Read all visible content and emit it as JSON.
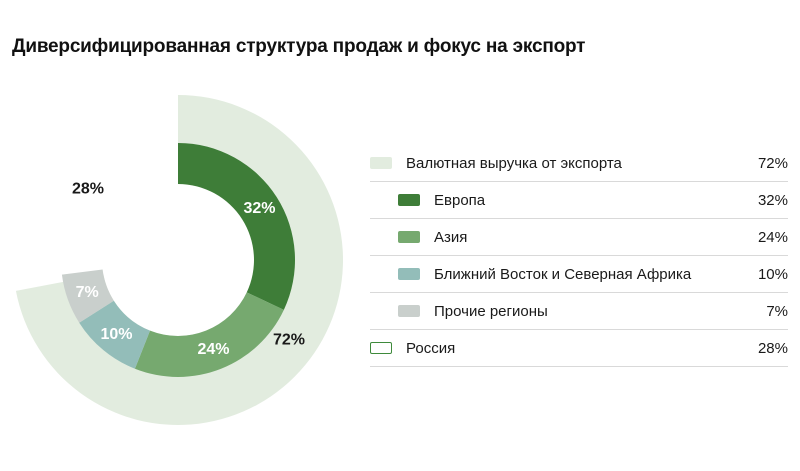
{
  "title": "Диверсифицированная структура продаж и фокус на экспорт",
  "colors": {
    "export": "#e2ecdf",
    "europe": "#3e7d38",
    "asia": "#76a96f",
    "mena": "#93bdb9",
    "other": "#c9cfcc",
    "russia_outline": "#3e8a3b"
  },
  "chart_data": [
    {
      "type": "pie",
      "ring": "outer",
      "series": [
        {
          "name": "Валютная выручка от экспорта",
          "value": 72,
          "label": "72%"
        },
        {
          "name": "Россия",
          "value": 28,
          "label": "28%"
        }
      ]
    },
    {
      "type": "pie",
      "ring": "inner",
      "series": [
        {
          "name": "Европа",
          "value": 32,
          "label": "32%"
        },
        {
          "name": "Азия",
          "value": 24,
          "label": "24%"
        },
        {
          "name": "Ближний Восток и Северная Африка",
          "value": 10,
          "label": "10%"
        },
        {
          "name": "Прочие регионы",
          "value": 7,
          "label": "7%"
        }
      ]
    }
  ],
  "legend": [
    {
      "label": "Валютная выручка от экспорта",
      "value": "72%",
      "swatch": "export",
      "sub": false
    },
    {
      "label": "Европа",
      "value": "32%",
      "swatch": "europe",
      "sub": true
    },
    {
      "label": "Азия",
      "value": "24%",
      "swatch": "asia",
      "sub": true
    },
    {
      "label": "Ближний Восток и Северная Африка",
      "value": "10%",
      "swatch": "mena",
      "sub": true
    },
    {
      "label": "Прочие регионы",
      "value": "7%",
      "swatch": "other",
      "sub": true
    },
    {
      "label": "Россия",
      "value": "28%",
      "swatch": "russia_outline",
      "sub": false
    }
  ]
}
